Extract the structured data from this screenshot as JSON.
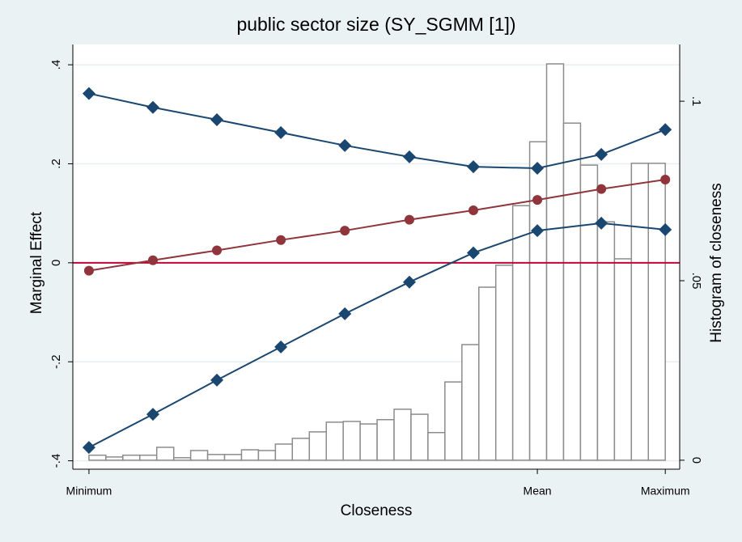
{
  "chart_data": {
    "type": "line",
    "title": "public sector size (SY_SGMM [1])",
    "x_label": "Closeness",
    "y_label": "Marginal Effect",
    "y2_label": "Histogram of closeness",
    "x": [
      0,
      0.111,
      0.222,
      0.333,
      0.444,
      0.556,
      0.667,
      0.778,
      0.889,
      1
    ],
    "series": [
      {
        "color": "#1a476f",
        "marker": "diamond",
        "values": [
          0.342,
          0.314,
          0.289,
          0.263,
          0.237,
          0.214,
          0.194,
          0.191,
          0.219,
          0.269
        ]
      },
      {
        "color": "#1a476f",
        "marker": "diamond",
        "values": [
          -0.373,
          -0.306,
          -0.237,
          -0.17,
          -0.103,
          -0.039,
          0.02,
          0.065,
          0.08,
          0.067
        ]
      },
      {
        "color": "#90353b",
        "marker": "circle",
        "values": [
          -0.016,
          0.005,
          0.025,
          0.046,
          0.065,
          0.087,
          0.106,
          0.127,
          0.149,
          0.168
        ]
      }
    ],
    "histogram": {
      "axis": "y2",
      "color": "#8c8c8c",
      "bins": [
        0,
        0.0294,
        0.0588,
        0.0882,
        0.1176,
        0.1471,
        0.1765,
        0.2059,
        0.2353,
        0.2647,
        0.2941,
        0.3235,
        0.3529,
        0.3824,
        0.4118,
        0.4412,
        0.4706,
        0.5,
        0.5294,
        0.5588,
        0.5882,
        0.6176,
        0.6471,
        0.6765,
        0.7059,
        0.7353,
        0.7647,
        0.7941,
        0.8235,
        0.8529,
        0.8824,
        0.9118,
        0.9412,
        0.9706,
        1
      ],
      "values": [
        0.0014,
        0.0009,
        0.0014,
        0.0014,
        0.0036,
        0.0007,
        0.0027,
        0.0016,
        0.0016,
        0.0029,
        0.0027,
        0.0045,
        0.0061,
        0.0079,
        0.0106,
        0.0108,
        0.0101,
        0.0113,
        0.0142,
        0.0128,
        0.0077,
        0.0218,
        0.0322,
        0.0482,
        0.0543,
        0.0709,
        0.0887,
        0.1104,
        0.0939,
        0.0822,
        0.0664,
        0.0561,
        0.0827,
        0.0827
      ]
    },
    "hline": {
      "value": 0,
      "color": "#c10534"
    },
    "xlim": [
      -0.028,
      1.025
    ],
    "xticks": [
      {
        "value": 0,
        "label": "Minimum"
      },
      {
        "value": 0.778,
        "label": "Mean"
      },
      {
        "value": 1,
        "label": "Maximum"
      }
    ],
    "ylim": [
      -0.417,
      0.441
    ],
    "yticks": [
      {
        "value": -0.4,
        "label": "-.4"
      },
      {
        "value": -0.2,
        "label": "-.2"
      },
      0,
      {
        "value": 0.2,
        "label": ".2"
      },
      {
        "value": 0.4,
        "label": ".4"
      }
    ],
    "y2lim": [
      -0.0025,
      0.1158
    ],
    "y2ticks": [
      0,
      {
        "value": 0.05,
        "label": ".05"
      },
      {
        "value": 0.1,
        "label": ".1"
      }
    ],
    "grid": true
  }
}
